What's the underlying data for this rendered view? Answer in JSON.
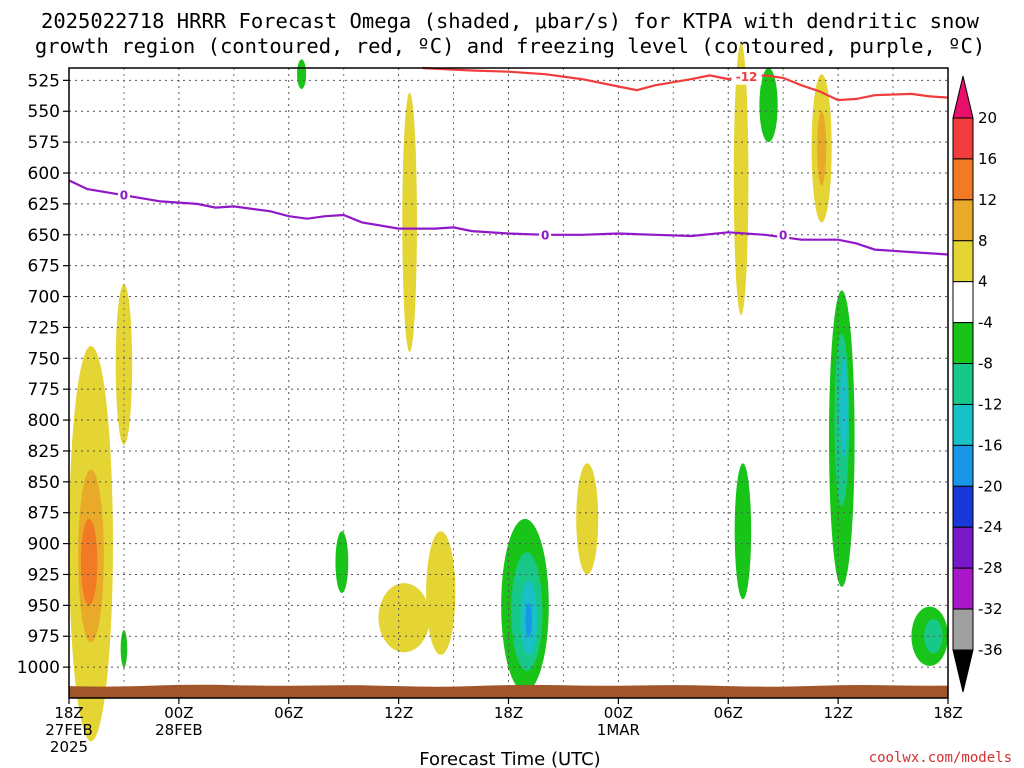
{
  "title_line1": "2025022718 HRRR Forecast Omega (shaded, μbar/s) for KTPA with dendritic snow",
  "title_line2": "growth region (contoured, red, ºC) and freezing level (contoured, purple, ºC)",
  "credit": "coolwx.com/models",
  "chart_data": {
    "type": "heatmap",
    "xlabel": "Forecast Time (UTC)",
    "ylabel": "",
    "x_range_hours": [
      0,
      48
    ],
    "y_range_hpa": [
      1025,
      515
    ],
    "x_ticks": [
      {
        "hour": 0,
        "lines": [
          "18Z",
          "27FEB",
          "2025"
        ]
      },
      {
        "hour": 6,
        "lines": [
          "00Z",
          "28FEB"
        ]
      },
      {
        "hour": 12,
        "lines": [
          "06Z"
        ]
      },
      {
        "hour": 18,
        "lines": [
          "12Z"
        ]
      },
      {
        "hour": 24,
        "lines": [
          "18Z"
        ]
      },
      {
        "hour": 30,
        "lines": [
          "00Z",
          "1MAR"
        ]
      },
      {
        "hour": 36,
        "lines": [
          "06Z"
        ]
      },
      {
        "hour": 42,
        "lines": [
          "12Z"
        ]
      },
      {
        "hour": 48,
        "lines": [
          "18Z"
        ]
      }
    ],
    "y_ticks": [
      525,
      550,
      575,
      600,
      625,
      650,
      675,
      700,
      725,
      750,
      775,
      800,
      825,
      850,
      875,
      900,
      925,
      950,
      975,
      1000
    ],
    "grid": true,
    "colorbar": {
      "labels": [
        "20",
        "16",
        "12",
        "8",
        "4",
        "-4",
        "-8",
        "-12",
        "-16",
        "-20",
        "-24",
        "-28",
        "-32",
        "-36"
      ],
      "colors": [
        "#e8106a",
        "#f03c3c",
        "#f27a24",
        "#e8aa28",
        "#e4d434",
        "#ffffff",
        "#18c418",
        "#18c888",
        "#18c0c8",
        "#1896e8",
        "#1838d8",
        "#7818c8",
        "#a818c8",
        "#a0a0a0",
        "#000000"
      ]
    },
    "dgz_contour": {
      "level_label": "-12",
      "color": "#f03c3c",
      "points": [
        [
          19.3,
          515
        ],
        [
          20.5,
          516
        ],
        [
          22,
          517
        ],
        [
          24,
          518
        ],
        [
          26,
          520
        ],
        [
          28,
          524
        ],
        [
          30,
          530
        ],
        [
          31,
          533
        ],
        [
          32,
          529
        ],
        [
          34,
          524
        ],
        [
          35,
          521
        ],
        [
          36,
          524
        ],
        [
          37,
          522
        ],
        [
          38,
          521
        ],
        [
          39,
          523
        ],
        [
          40,
          529
        ],
        [
          41,
          534
        ],
        [
          42,
          541
        ],
        [
          43,
          540
        ],
        [
          44,
          537
        ],
        [
          46,
          536
        ],
        [
          47,
          538
        ],
        [
          48,
          539
        ]
      ],
      "label_hour": 37,
      "label_hpa": 522
    },
    "freezing_level": {
      "level_label": "0",
      "color": "#9018c8",
      "points": [
        [
          0,
          606
        ],
        [
          1,
          613
        ],
        [
          3,
          618
        ],
        [
          5,
          623
        ],
        [
          7,
          625
        ],
        [
          8,
          628
        ],
        [
          9,
          627
        ],
        [
          11,
          631
        ],
        [
          12,
          635
        ],
        [
          13,
          637
        ],
        [
          14,
          635
        ],
        [
          15,
          634
        ],
        [
          16,
          640
        ],
        [
          18,
          645
        ],
        [
          20,
          645
        ],
        [
          21,
          644
        ],
        [
          22,
          647
        ],
        [
          24,
          649
        ],
        [
          26,
          650
        ],
        [
          28,
          650
        ],
        [
          30,
          649
        ],
        [
          32,
          650
        ],
        [
          34,
          651
        ],
        [
          36,
          648
        ],
        [
          38,
          650
        ],
        [
          40,
          654
        ],
        [
          42,
          654
        ],
        [
          43,
          657
        ],
        [
          44,
          662
        ],
        [
          46,
          664
        ],
        [
          48,
          666
        ]
      ],
      "label_points": [
        [
          3,
          618
        ],
        [
          26,
          650
        ],
        [
          39,
          650
        ]
      ]
    },
    "omega_features": [
      {
        "color": "#e4d434",
        "cx_hour": 1.2,
        "cy_hpa": 900,
        "rx_hour": 1.2,
        "ry_hpa": 160
      },
      {
        "color": "#e8aa28",
        "cx_hour": 1.2,
        "cy_hpa": 910,
        "rx_hour": 0.7,
        "ry_hpa": 70
      },
      {
        "color": "#f27a24",
        "cx_hour": 1.1,
        "cy_hpa": 915,
        "rx_hour": 0.45,
        "ry_hpa": 35
      },
      {
        "color": "#e4d434",
        "cx_hour": 3.0,
        "cy_hpa": 755,
        "rx_hour": 0.45,
        "ry_hpa": 65
      },
      {
        "color": "#18c418",
        "cx_hour": 3.0,
        "cy_hpa": 985,
        "rx_hour": 0.18,
        "ry_hpa": 15
      },
      {
        "color": "#18c418",
        "cx_hour": 12.7,
        "cy_hpa": 520,
        "rx_hour": 0.25,
        "ry_hpa": 12
      },
      {
        "color": "#18c418",
        "cx_hour": 14.9,
        "cy_hpa": 915,
        "rx_hour": 0.35,
        "ry_hpa": 25
      },
      {
        "color": "#e4d434",
        "cx_hour": 18.6,
        "cy_hpa": 640,
        "rx_hour": 0.4,
        "ry_hpa": 105
      },
      {
        "color": "#e4d434",
        "cx_hour": 18.3,
        "cy_hpa": 960,
        "rx_hour": 1.4,
        "ry_hpa": 28
      },
      {
        "color": "#e4d434",
        "cx_hour": 20.3,
        "cy_hpa": 940,
        "rx_hour": 0.8,
        "ry_hpa": 50
      },
      {
        "color": "#18c418",
        "cx_hour": 24.9,
        "cy_hpa": 950,
        "rx_hour": 1.3,
        "ry_hpa": 70
      },
      {
        "color": "#18c888",
        "cx_hour": 25.0,
        "cy_hpa": 955,
        "rx_hour": 0.85,
        "ry_hpa": 48
      },
      {
        "color": "#18c0c8",
        "cx_hour": 25.1,
        "cy_hpa": 960,
        "rx_hour": 0.45,
        "ry_hpa": 30
      },
      {
        "color": "#1896e8",
        "cx_hour": 25.1,
        "cy_hpa": 962,
        "rx_hour": 0.18,
        "ry_hpa": 14
      },
      {
        "color": "#e4d434",
        "cx_hour": 28.3,
        "cy_hpa": 880,
        "rx_hour": 0.6,
        "ry_hpa": 45
      },
      {
        "color": "#e4d434",
        "cx_hour": 36.7,
        "cy_hpa": 605,
        "rx_hour": 0.4,
        "ry_hpa": 110
      },
      {
        "color": "#18c418",
        "cx_hour": 38.2,
        "cy_hpa": 545,
        "rx_hour": 0.5,
        "ry_hpa": 30
      },
      {
        "color": "#18c418",
        "cx_hour": 36.8,
        "cy_hpa": 890,
        "rx_hour": 0.45,
        "ry_hpa": 55
      },
      {
        "color": "#e4d434",
        "cx_hour": 41.1,
        "cy_hpa": 580,
        "rx_hour": 0.55,
        "ry_hpa": 60
      },
      {
        "color": "#e8aa28",
        "cx_hour": 41.1,
        "cy_hpa": 580,
        "rx_hour": 0.25,
        "ry_hpa": 30
      },
      {
        "color": "#18c418",
        "cx_hour": 42.2,
        "cy_hpa": 815,
        "rx_hour": 0.7,
        "ry_hpa": 120
      },
      {
        "color": "#18c888",
        "cx_hour": 42.2,
        "cy_hpa": 800,
        "rx_hour": 0.4,
        "ry_hpa": 70
      },
      {
        "color": "#18c0c8",
        "cx_hour": 42.3,
        "cy_hpa": 790,
        "rx_hour": 0.2,
        "ry_hpa": 40
      },
      {
        "color": "#18c418",
        "cx_hour": 47.0,
        "cy_hpa": 975,
        "rx_hour": 1.0,
        "ry_hpa": 24
      },
      {
        "color": "#18c888",
        "cx_hour": 47.2,
        "cy_hpa": 975,
        "rx_hour": 0.5,
        "ry_hpa": 14
      }
    ],
    "surface_color": "#a0552a"
  }
}
